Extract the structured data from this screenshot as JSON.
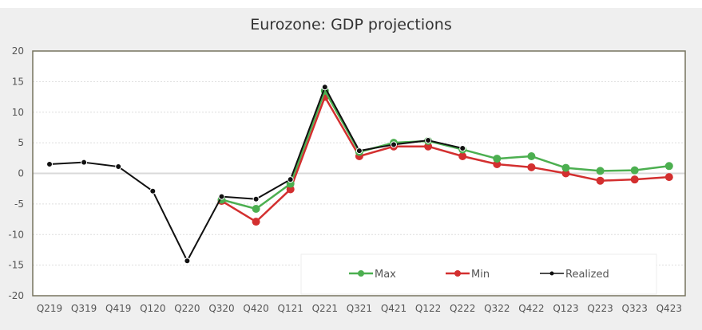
{
  "chart_data": {
    "type": "line",
    "title": "Eurozone: GDP projections",
    "xlabel": "",
    "ylabel": "",
    "ylim": [
      -20,
      20
    ],
    "yticks": [
      20,
      15,
      10,
      5,
      0,
      -5,
      -10,
      -15,
      -20
    ],
    "grid": true,
    "legend_position": "bottom-right",
    "categories": [
      "Q219",
      "Q319",
      "Q419",
      "Q120",
      "Q220",
      "Q320",
      "Q420",
      "Q121",
      "Q221",
      "Q321",
      "Q421",
      "Q122",
      "Q222",
      "Q322",
      "Q422",
      "Q123",
      "Q223",
      "Q323",
      "Q423"
    ],
    "series": [
      {
        "name": "Max",
        "color": "#4caf50",
        "values": [
          null,
          null,
          null,
          null,
          null,
          -4.3,
          -5.8,
          -1.7,
          13.5,
          3.5,
          5.0,
          5.3,
          3.9,
          2.4,
          2.8,
          0.9,
          0.4,
          0.5,
          1.2
        ]
      },
      {
        "name": "Min",
        "color": "#d32f2f",
        "values": [
          null,
          null,
          null,
          null,
          null,
          -4.5,
          -7.9,
          -2.6,
          12.5,
          2.8,
          4.4,
          4.4,
          2.8,
          1.5,
          1.0,
          0.0,
          -1.2,
          -1.0,
          -0.6
        ]
      },
      {
        "name": "Realized",
        "color": "#111111",
        "values": [
          1.5,
          1.8,
          1.1,
          -2.9,
          -14.3,
          -3.8,
          -4.2,
          -1.0,
          14.1,
          3.7,
          4.7,
          5.4,
          4.1,
          null,
          null,
          null,
          null,
          null,
          null
        ]
      }
    ]
  }
}
